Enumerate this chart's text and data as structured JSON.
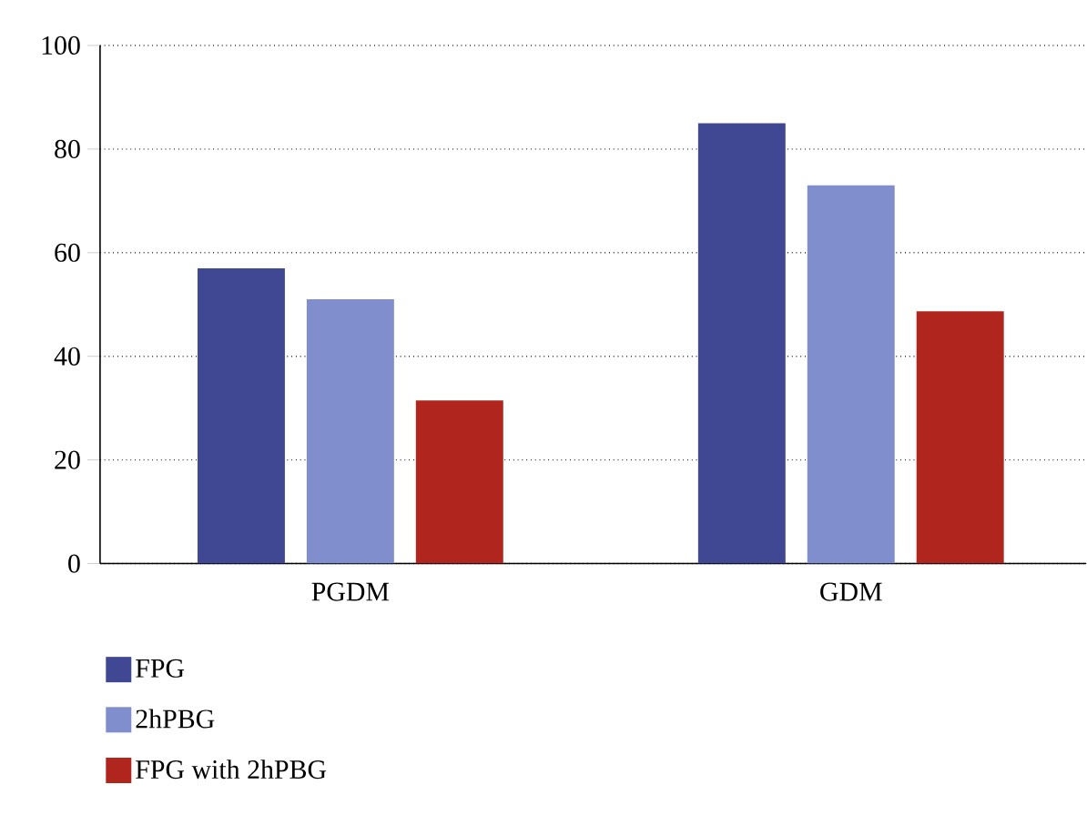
{
  "chart_data": {
    "type": "bar",
    "categories": [
      "PGDM",
      "GDM"
    ],
    "series": [
      {
        "name": "FPG",
        "color": "#414893",
        "values": [
          57,
          85
        ]
      },
      {
        "name": "2hPBG",
        "color": "#808ecd",
        "values": [
          51,
          73
        ]
      },
      {
        "name": "FPG with 2hPBG",
        "color": "#b0261e",
        "values": [
          31.5,
          48.7
        ]
      }
    ],
    "ylim": [
      0,
      100
    ],
    "yticks": [
      0,
      20,
      40,
      60,
      80,
      100
    ],
    "grid": "y",
    "legend": "bottom"
  }
}
